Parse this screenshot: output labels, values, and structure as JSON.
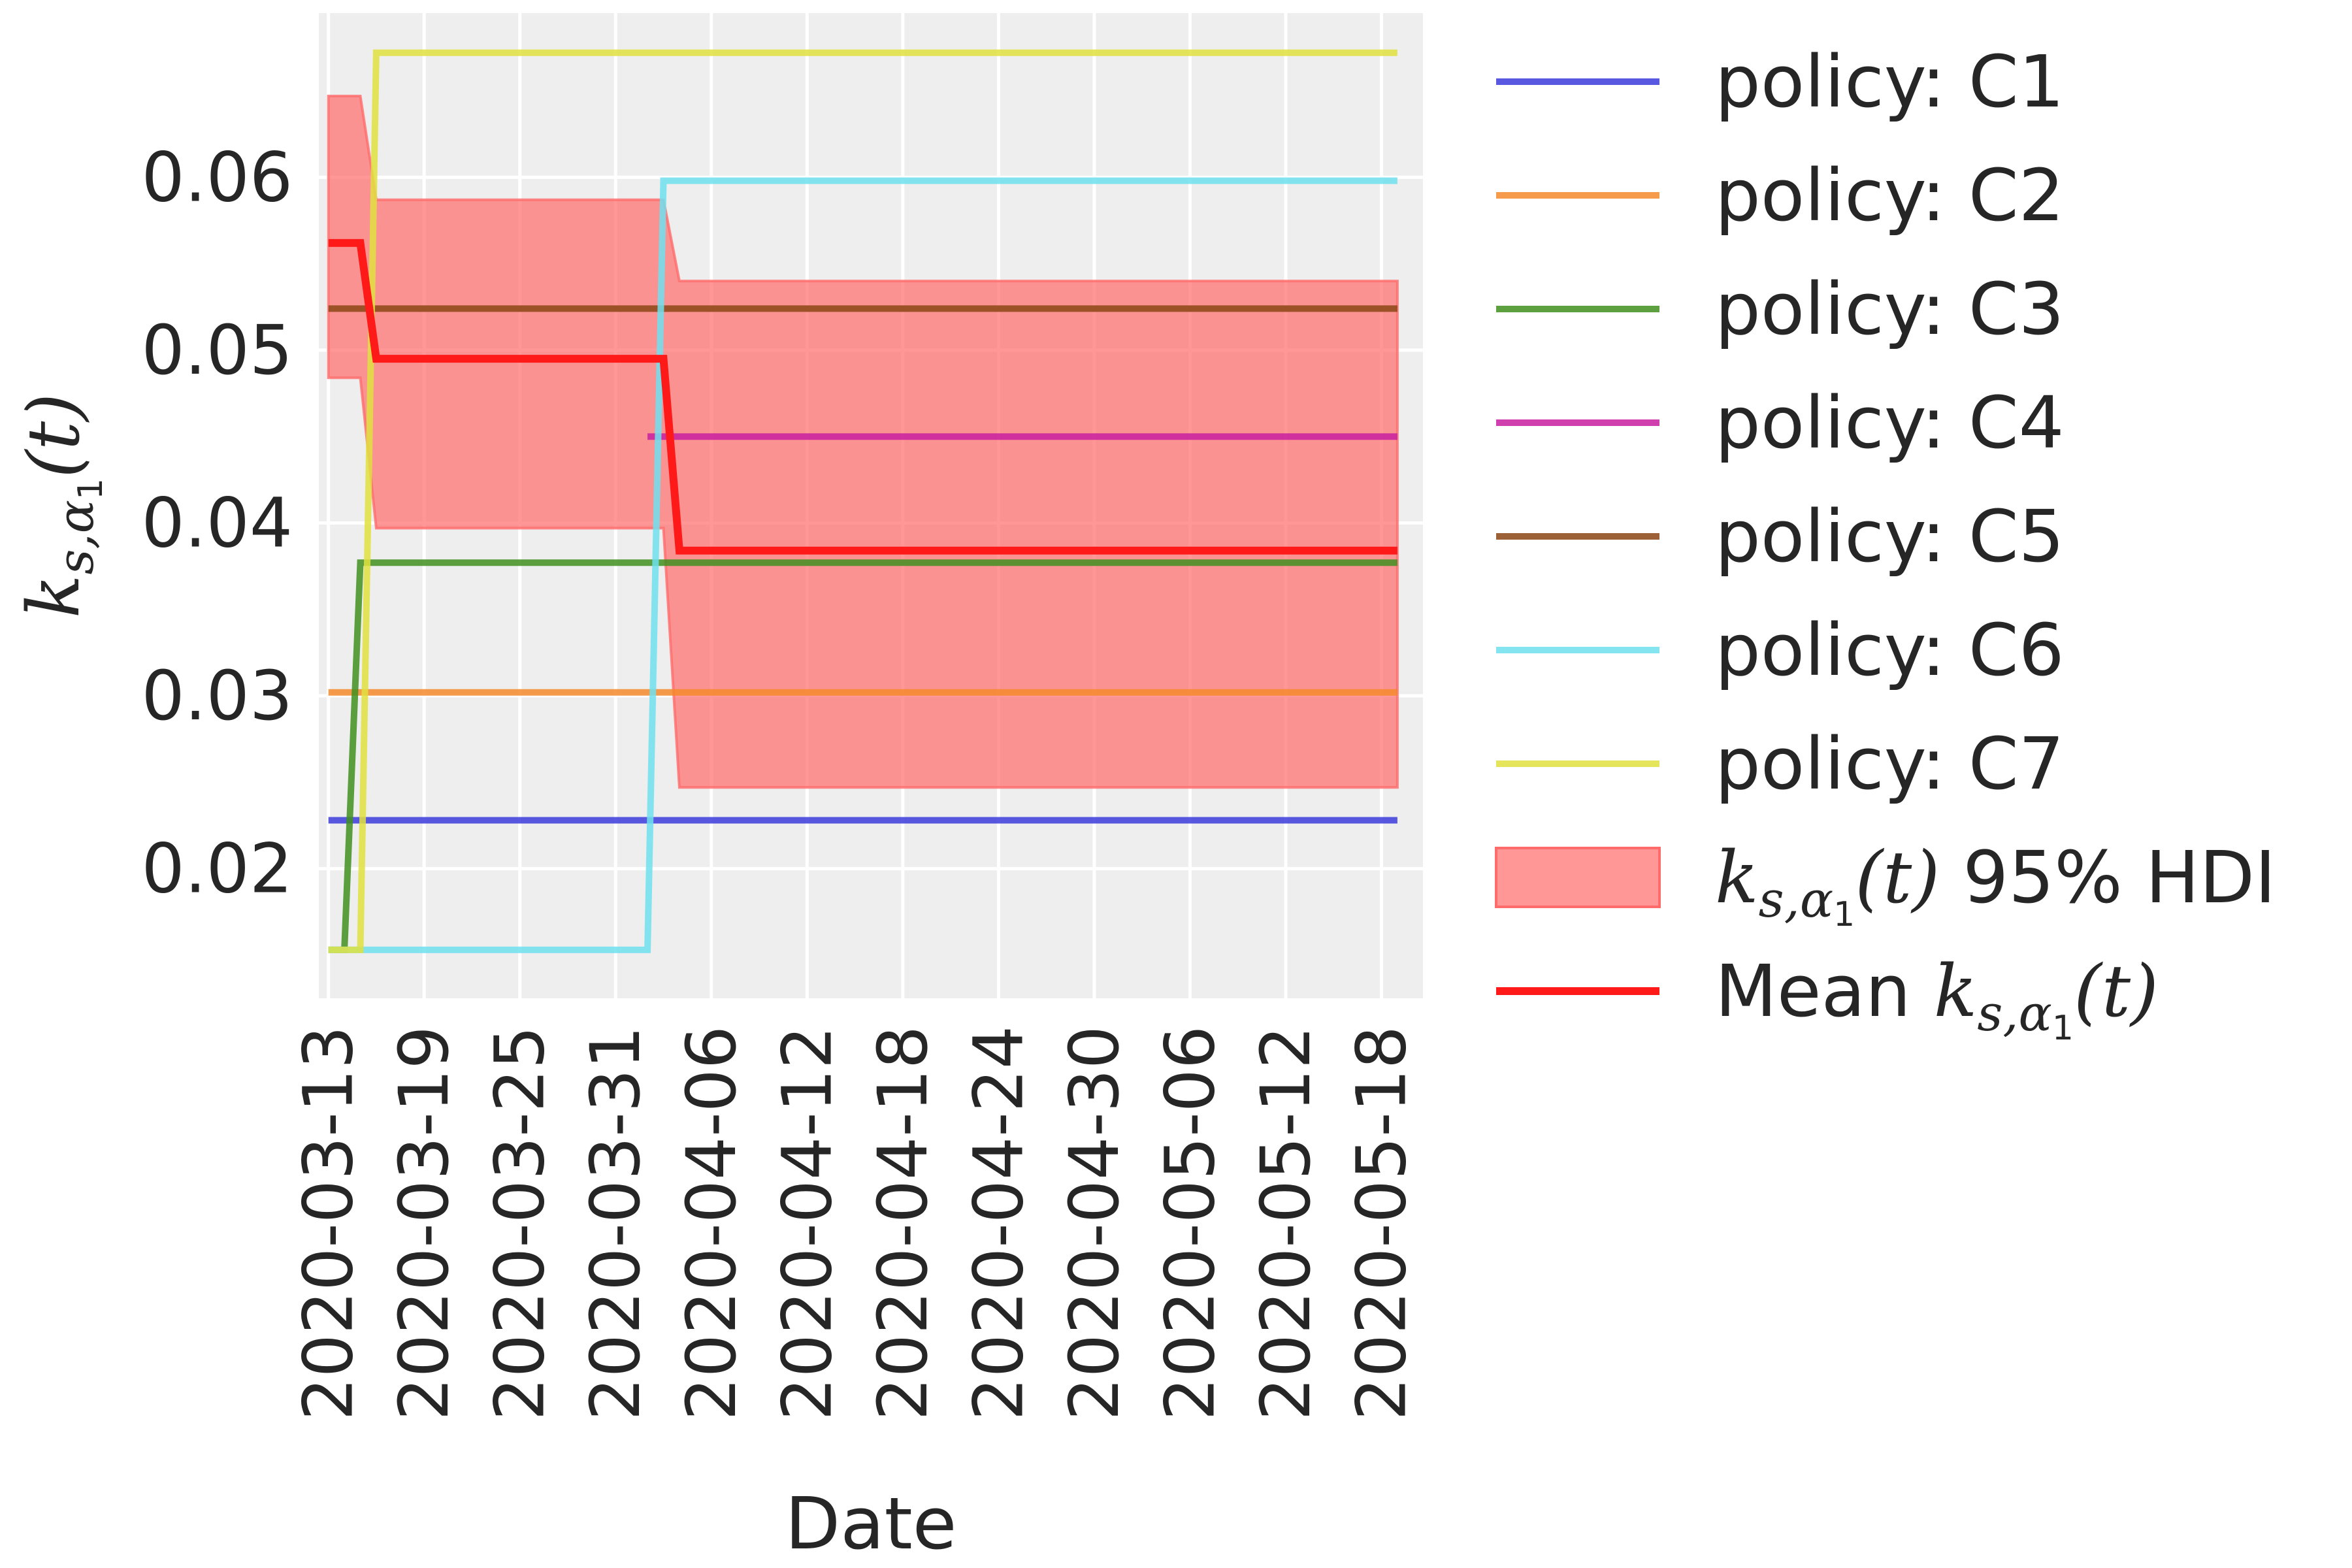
{
  "chart_data": {
    "type": "line",
    "xlabel": "Date",
    "ylabel": {
      "base": "k",
      "sub_s": "s,",
      "sub_alpha": "α",
      "sub_alpha_index": "1",
      "arg": "(t)"
    },
    "x_start": "2020-03-13",
    "x_end": "2020-05-19",
    "xlim_days": [
      -0.6,
      68.6
    ],
    "ylim": [
      0.0125,
      0.0695
    ],
    "y_ticks": [
      0.02,
      0.03,
      0.04,
      0.05,
      0.06
    ],
    "y_tick_labels": [
      "0.02",
      "0.03",
      "0.04",
      "0.05",
      "0.06"
    ],
    "x_ticks": [
      "2020-03-13",
      "2020-03-19",
      "2020-03-25",
      "2020-03-31",
      "2020-04-06",
      "2020-04-12",
      "2020-04-18",
      "2020-04-24",
      "2020-04-30",
      "2020-05-06",
      "2020-05-12",
      "2020-05-18"
    ],
    "x_tick_days": [
      0,
      6,
      12,
      18,
      24,
      30,
      36,
      42,
      48,
      54,
      60,
      66
    ],
    "grid": true,
    "series": [
      {
        "name": "policy: C1",
        "color": "#3b3bdc",
        "points": [
          [
            0,
            0.0228
          ],
          [
            67,
            0.0228
          ]
        ]
      },
      {
        "name": "policy: C2",
        "color": "#f58a2b",
        "points": [
          [
            0,
            0.0302
          ],
          [
            67,
            0.0302
          ]
        ]
      },
      {
        "name": "policy: C3",
        "color": "#3f8f1f",
        "points": [
          [
            0,
            0.0153
          ],
          [
            1,
            0.0153
          ],
          [
            2,
            0.0377
          ],
          [
            67,
            0.0377
          ]
        ]
      },
      {
        "name": "policy: C4",
        "color": "#c71fa0",
        "points": [
          [
            20,
            0.045
          ],
          [
            67,
            0.045
          ]
        ]
      },
      {
        "name": "policy: C5",
        "color": "#8b4513",
        "points": [
          [
            0,
            0.0524
          ],
          [
            67,
            0.0524
          ]
        ]
      },
      {
        "name": "policy: C6",
        "color": "#6ee0ee",
        "points": [
          [
            0,
            0.0153
          ],
          [
            20,
            0.0153
          ],
          [
            21,
            0.0598
          ],
          [
            67,
            0.0598
          ]
        ]
      },
      {
        "name": "policy: C7",
        "color": "#e0e040",
        "points": [
          [
            0,
            0.0153
          ],
          [
            2,
            0.0153
          ],
          [
            3,
            0.0672
          ],
          [
            67,
            0.0672
          ]
        ]
      }
    ],
    "hdi": {
      "name": "95% HDI",
      "color": "#ff6b6b",
      "upper": [
        [
          0,
          0.0647
        ],
        [
          2,
          0.0647
        ],
        [
          3,
          0.0587
        ],
        [
          21,
          0.0587
        ],
        [
          22,
          0.054
        ],
        [
          67,
          0.054
        ]
      ],
      "lower": [
        [
          0,
          0.0484
        ],
        [
          2,
          0.0484
        ],
        [
          3,
          0.0397
        ],
        [
          21,
          0.0397
        ],
        [
          22,
          0.0247
        ],
        [
          67,
          0.0247
        ]
      ]
    },
    "mean": {
      "name": "Mean",
      "color": "#ff1a1a",
      "points": [
        [
          0,
          0.0562
        ],
        [
          2,
          0.0562
        ],
        [
          3,
          0.0495
        ],
        [
          21,
          0.0495
        ],
        [
          22,
          0.0384
        ],
        [
          67,
          0.0384
        ]
      ]
    },
    "legend": {
      "placement": "outside-right",
      "entries": [
        "policy: C1",
        "policy: C2",
        "policy: C3",
        "policy: C4",
        "policy: C5",
        "policy: C6",
        "policy: C7",
        "95% HDI",
        "Mean"
      ]
    }
  }
}
